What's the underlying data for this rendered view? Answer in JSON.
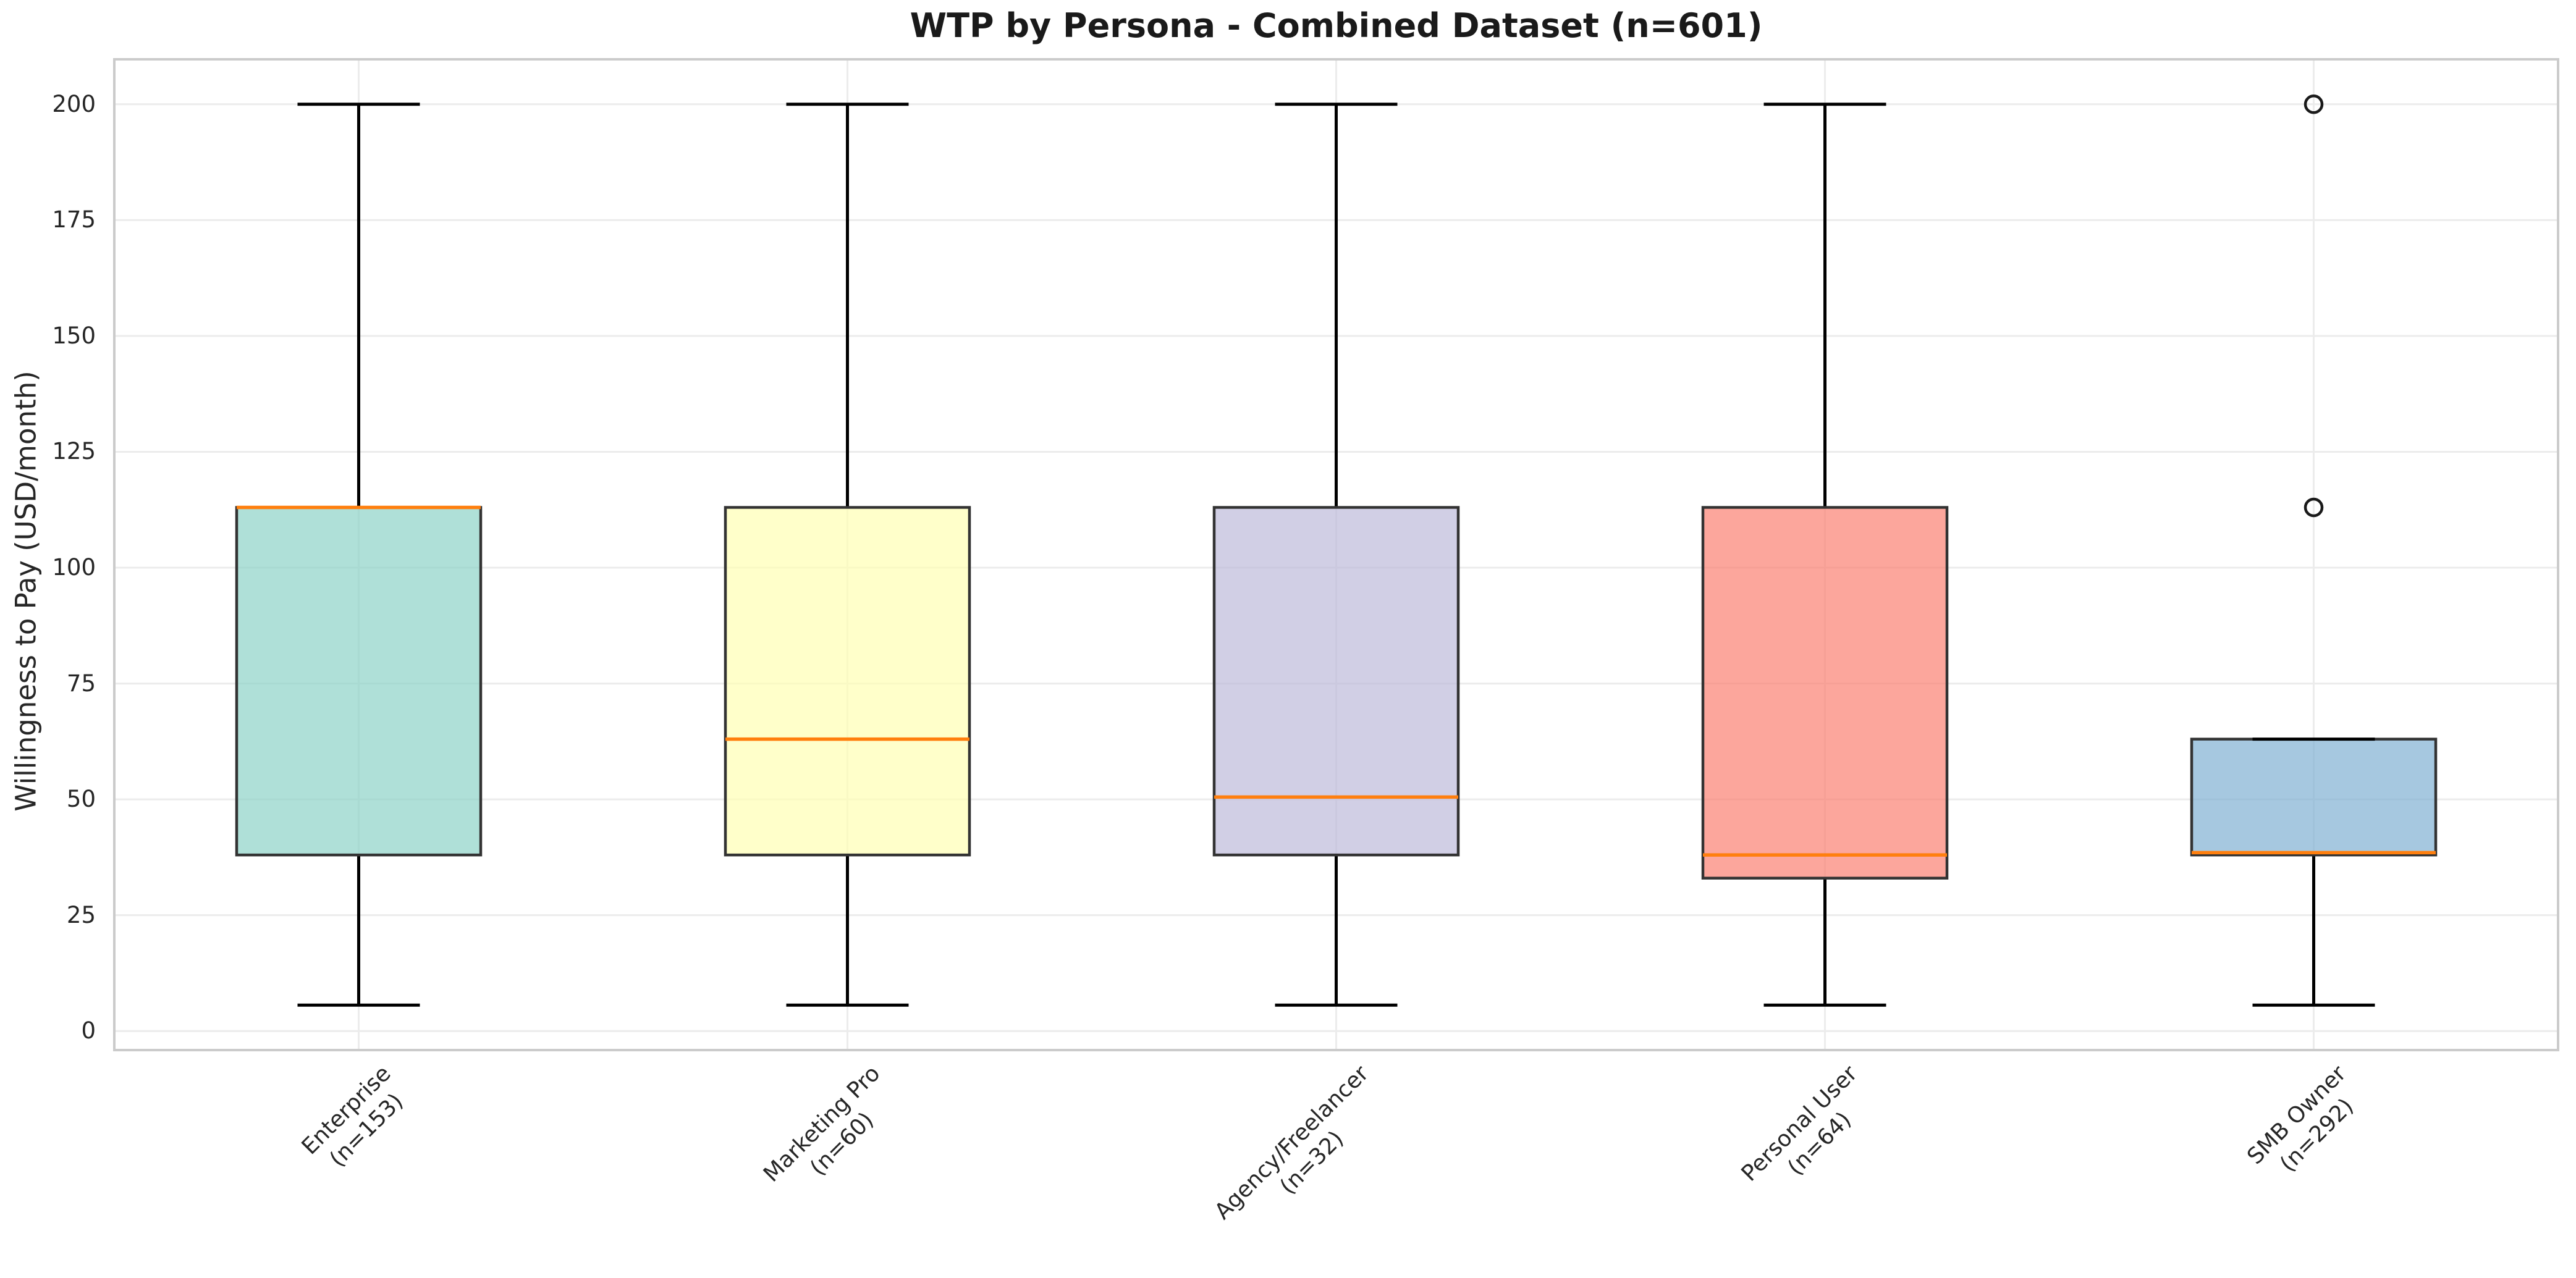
{
  "chart_data": {
    "type": "box",
    "title": "WTP by Persona - Combined Dataset (n=601)",
    "ylabel": "Willingness to Pay (USD/month)",
    "xlabel": "",
    "total_n": 601,
    "yticks": [
      0,
      25,
      50,
      75,
      100,
      125,
      150,
      175,
      200
    ],
    "ylim": [
      -4.1,
      209.7
    ],
    "grid": "on",
    "legend": "none",
    "categories": [
      {
        "label": "Enterprise",
        "n": 153,
        "tick_lines": [
          "Enterprise",
          "(n=153)"
        ],
        "whislo": 5.6,
        "q1": 38,
        "med": 113,
        "q3": 113,
        "whishi": 200,
        "fliers": [],
        "fill": "#8dd3c7"
      },
      {
        "label": "Marketing Pro",
        "n": 60,
        "tick_lines": [
          "Marketing Pro",
          "(n=60)"
        ],
        "whislo": 5.6,
        "q1": 38,
        "med": 63,
        "q3": 113,
        "whishi": 200,
        "fliers": [],
        "fill": "#ffffb3"
      },
      {
        "label": "Agency/Freelancer",
        "n": 32,
        "tick_lines": [
          "Agency/Freelancer",
          "(n=32)"
        ],
        "whislo": 5.6,
        "q1": 38,
        "med": 50.5,
        "q3": 113,
        "whishi": 200,
        "fliers": [],
        "fill": "#bebada"
      },
      {
        "label": "Personal User",
        "n": 64,
        "tick_lines": [
          "Personal User",
          "(n=64)"
        ],
        "whislo": 5.6,
        "q1": 33,
        "med": 38,
        "q3": 113,
        "whishi": 200,
        "fliers": [],
        "fill": "#fb8072"
      },
      {
        "label": "SMB Owner",
        "n": 292,
        "tick_lines": [
          "SMB Owner",
          "(n=292)"
        ],
        "whislo": 5.6,
        "q1": 38,
        "med": 38.5,
        "q3": 63,
        "whishi": 63,
        "fliers": [
          113,
          200
        ],
        "fill": "#80b1d3"
      }
    ],
    "style": {
      "median_color": "#ff7f0e",
      "whisker_color": "#000000",
      "box_edge_color": "#333333",
      "grid_color": "#ececec",
      "spine_color": "#cbcbcb",
      "text_color": "#262626",
      "fill_alpha": 0.7,
      "background": "#ffffff"
    }
  }
}
